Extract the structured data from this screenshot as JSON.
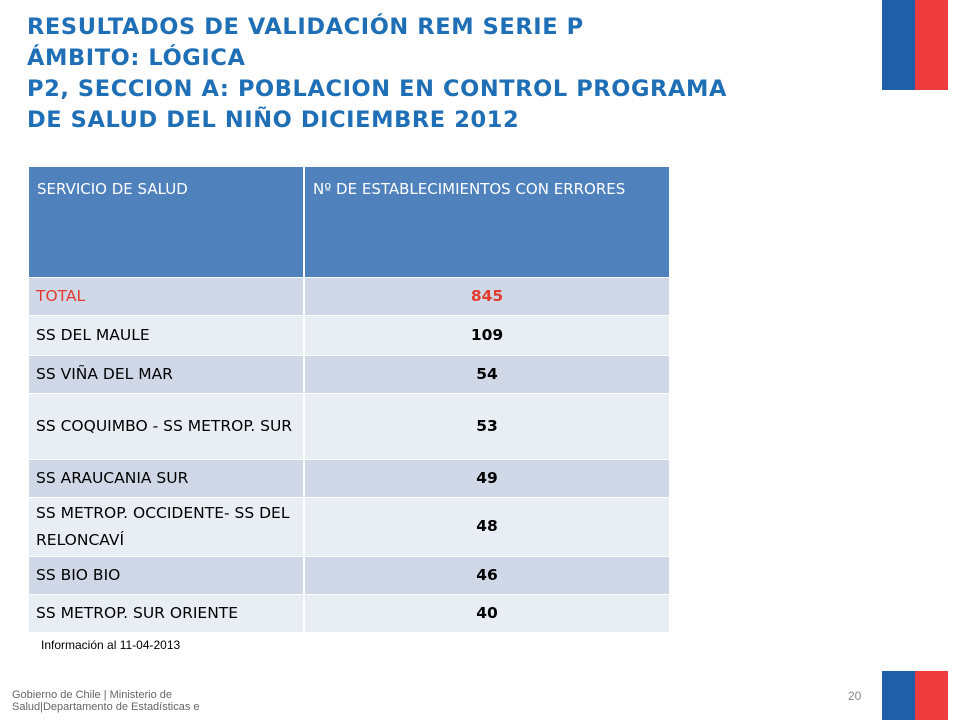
{
  "title_lines": [
    "RESULTADOS DE VALIDACIÓN REM SERIE P",
    "ÁMBITO: LÓGICA",
    "P2, SECCION A: POBLACION EN CONTROL PROGRAMA",
    "DE SALUD DEL NIÑO  DICIEMBRE 2012"
  ],
  "table": {
    "headers": [
      "SERVICIO DE SALUD",
      "Nº DE ESTABLECIMIENTOS CON ERRORES"
    ],
    "rows": [
      {
        "name": "TOTAL",
        "value": "845"
      },
      {
        "name": "SS DEL MAULE",
        "value": "109"
      },
      {
        "name": "SS VIÑA DEL MAR",
        "value": "54"
      },
      {
        "name": "SS COQUIMBO - SS METROP. SUR",
        "value": "53"
      },
      {
        "name": "SS ARAUCANIA SUR",
        "value": "49"
      },
      {
        "name": "SS METROP. OCCIDENTE- SS DEL RELONCAVÍ",
        "value": "48"
      },
      {
        "name": "SS BIO BIO",
        "value": "46"
      },
      {
        "name": "SS METROP. SUR ORIENTE",
        "value": "40"
      }
    ]
  },
  "note": "Información al 11-04-2013",
  "footer": "Gobierno de Chile | Ministerio de Salud|Departamento de Estadísticas e",
  "page_number": "20",
  "colors": {
    "title": "#1f6fb6",
    "header_bg": "#4f81bd",
    "band_row": "#d0d8e8",
    "plain_row": "#e9edf4",
    "total_text": "#e23a2e",
    "flag_blue": "#1f5fa8",
    "flag_red": "#ef3b3d"
  }
}
